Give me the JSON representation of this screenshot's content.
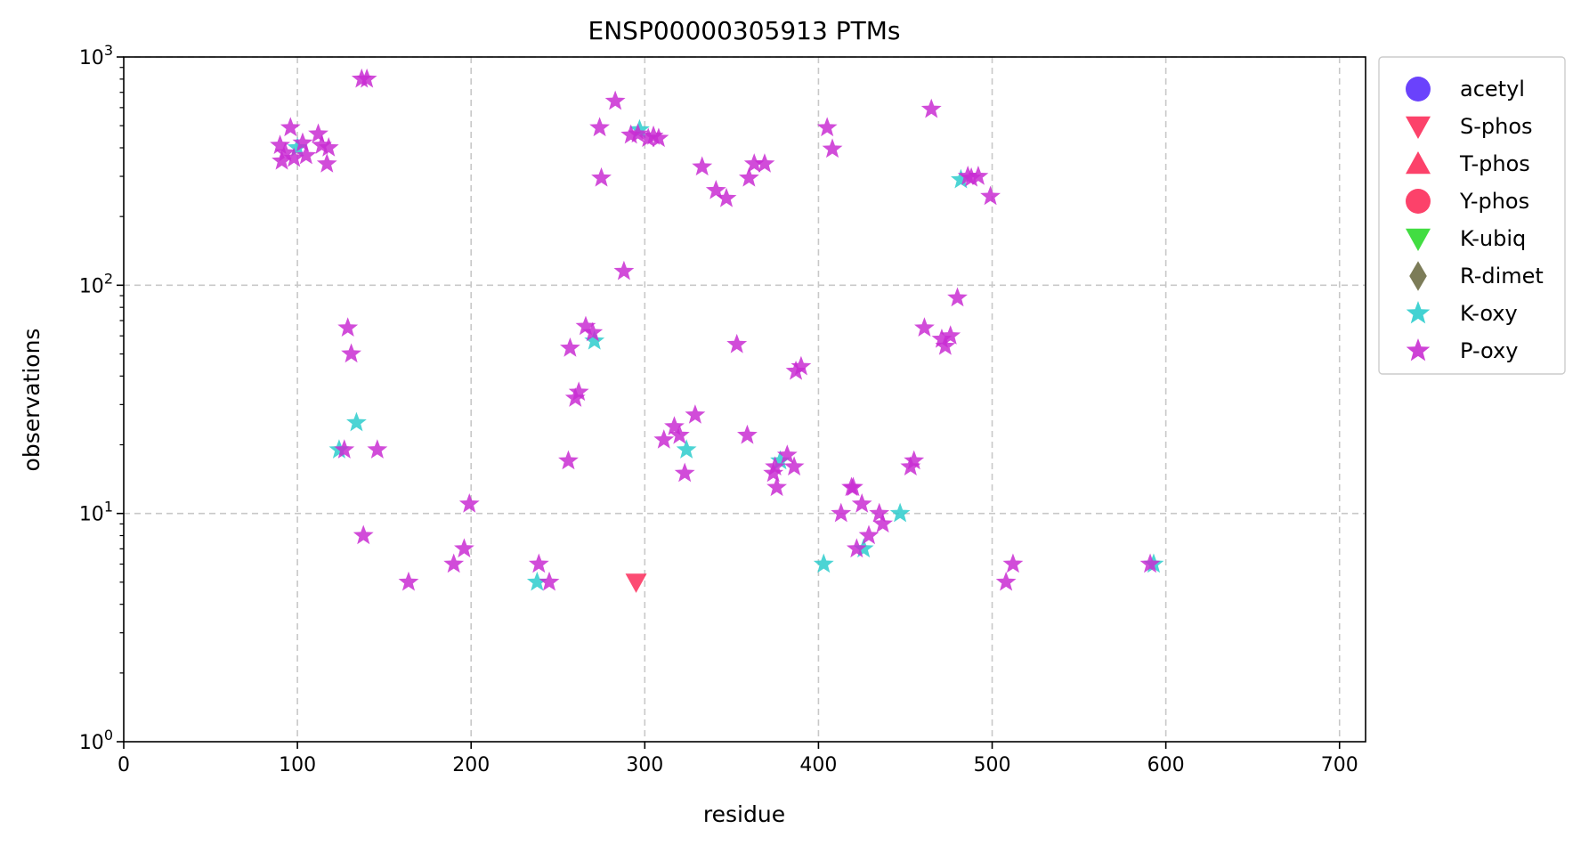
{
  "chart_data": {
    "type": "scatter",
    "title": "ENSP00000305913 PTMs",
    "xlabel": "residue",
    "ylabel": "observations",
    "xlim": [
      0,
      715
    ],
    "ylim": [
      1,
      1000
    ],
    "yscale": "log",
    "xticks": [
      0,
      100,
      200,
      300,
      400,
      500,
      600,
      700
    ],
    "xtick_labels": [
      "0",
      "100",
      "200",
      "300",
      "400",
      "500",
      "600",
      "700"
    ],
    "yticks": [
      1,
      10,
      100,
      1000
    ],
    "ytick_labels": [
      {
        "base": "10",
        "exp": "0"
      },
      {
        "base": "10",
        "exp": "1"
      },
      {
        "base": "10",
        "exp": "2"
      },
      {
        "base": "10",
        "exp": "3"
      }
    ],
    "grid": true,
    "legend_position": "outside-right",
    "series": [
      {
        "name": "acetyl",
        "marker": "circle",
        "color": "#5a2dfc",
        "points": []
      },
      {
        "name": "S-phos",
        "marker": "triangle-down",
        "color": "#fc2d5a",
        "points": [
          [
            295,
            5
          ]
        ]
      },
      {
        "name": "T-phos",
        "marker": "triangle-up",
        "color": "#fc2d5a",
        "points": []
      },
      {
        "name": "Y-phos",
        "marker": "circle",
        "color": "#fc2d5a",
        "points": []
      },
      {
        "name": "K-ubiq",
        "marker": "triangle-down",
        "color": "#2dd92d",
        "points": []
      },
      {
        "name": "R-dimet",
        "marker": "diamond",
        "color": "#6e6e46",
        "points": []
      },
      {
        "name": "K-oxy",
        "marker": "star",
        "color": "#2dcdcd",
        "points": [
          [
            100,
            400
          ],
          [
            124,
            19
          ],
          [
            134,
            25
          ],
          [
            238,
            5
          ],
          [
            271,
            57
          ],
          [
            297,
            480
          ],
          [
            324,
            19
          ],
          [
            378,
            17
          ],
          [
            403,
            6
          ],
          [
            426,
            7
          ],
          [
            447,
            10
          ],
          [
            482,
            290
          ],
          [
            593,
            6
          ]
        ]
      },
      {
        "name": "P-oxy",
        "marker": "star",
        "color": "#c92dd2",
        "points": [
          [
            90,
            410
          ],
          [
            91,
            350
          ],
          [
            93,
            380
          ],
          [
            96,
            490
          ],
          [
            98,
            360
          ],
          [
            103,
            420
          ],
          [
            105,
            370
          ],
          [
            112,
            460
          ],
          [
            114,
            410
          ],
          [
            117,
            340
          ],
          [
            118,
            400
          ],
          [
            127,
            19
          ],
          [
            129,
            65
          ],
          [
            131,
            50
          ],
          [
            137,
            800
          ],
          [
            138,
            8
          ],
          [
            140,
            800
          ],
          [
            146,
            19
          ],
          [
            164,
            5
          ],
          [
            190,
            6
          ],
          [
            196,
            7
          ],
          [
            199,
            11
          ],
          [
            239,
            6
          ],
          [
            245,
            5
          ],
          [
            256,
            17
          ],
          [
            257,
            53
          ],
          [
            260,
            32
          ],
          [
            262,
            34
          ],
          [
            266,
            66
          ],
          [
            270,
            62
          ],
          [
            274,
            490
          ],
          [
            275,
            295
          ],
          [
            283,
            640
          ],
          [
            288,
            115
          ],
          [
            292,
            455
          ],
          [
            296,
            460
          ],
          [
            302,
            440
          ],
          [
            305,
            450
          ],
          [
            308,
            440
          ],
          [
            311,
            21
          ],
          [
            317,
            24
          ],
          [
            320,
            22
          ],
          [
            323,
            15
          ],
          [
            329,
            27
          ],
          [
            333,
            330
          ],
          [
            341,
            260
          ],
          [
            347,
            240
          ],
          [
            353,
            55
          ],
          [
            359,
            22
          ],
          [
            360,
            295
          ],
          [
            363,
            340
          ],
          [
            369,
            340
          ],
          [
            374,
            15
          ],
          [
            375,
            16
          ],
          [
            376,
            13
          ],
          [
            382,
            18
          ],
          [
            386,
            16
          ],
          [
            387,
            42
          ],
          [
            390,
            44
          ],
          [
            405,
            490
          ],
          [
            408,
            395
          ],
          [
            413,
            10
          ],
          [
            419,
            13
          ],
          [
            420,
            13
          ],
          [
            422,
            7
          ],
          [
            425,
            11
          ],
          [
            429,
            8
          ],
          [
            435,
            10
          ],
          [
            437,
            9
          ],
          [
            453,
            16
          ],
          [
            455,
            17
          ],
          [
            461,
            65
          ],
          [
            465,
            590
          ],
          [
            471,
            58
          ],
          [
            473,
            54
          ],
          [
            476,
            60
          ],
          [
            480,
            88
          ],
          [
            486,
            300
          ],
          [
            488,
            295
          ],
          [
            492,
            300
          ],
          [
            499,
            245
          ],
          [
            508,
            5
          ],
          [
            512,
            6
          ],
          [
            591,
            6
          ]
        ]
      }
    ]
  }
}
